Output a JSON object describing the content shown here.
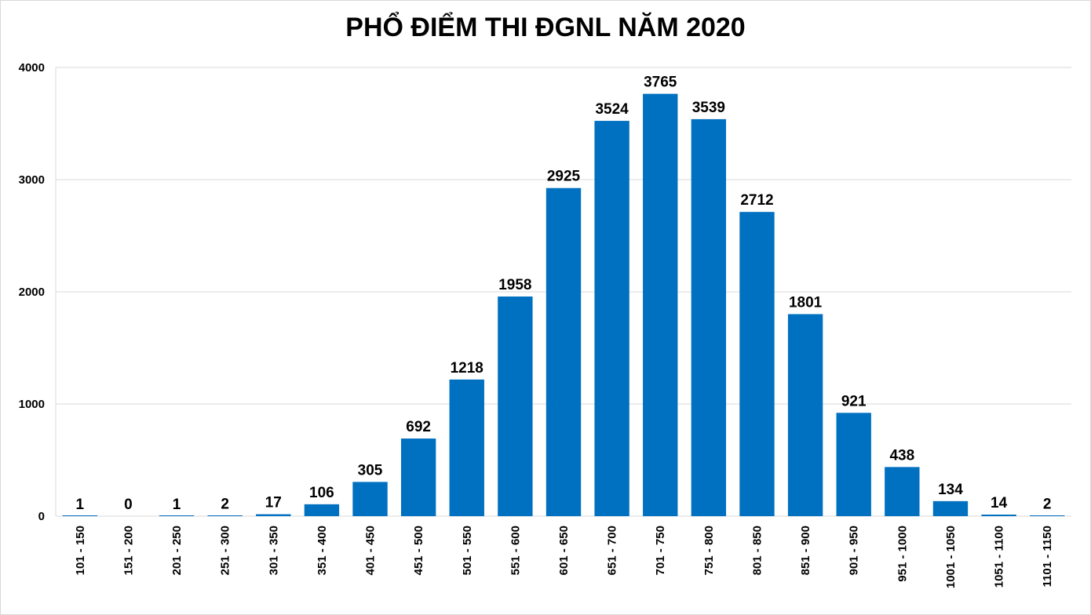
{
  "chart_data": {
    "type": "bar",
    "title": "PHỔ ĐIỂM THI ĐGNL NĂM 2020",
    "xlabel": "",
    "ylabel": "",
    "ylim": [
      0,
      4000
    ],
    "yticks": [
      0,
      1000,
      2000,
      3000,
      4000
    ],
    "grid": true,
    "legend": "none",
    "bar_color": "#0070C0",
    "categories": [
      "101 - 150",
      "151 - 200",
      "201 - 250",
      "251 - 300",
      "301 - 350",
      "351 - 400",
      "401 - 450",
      "451 - 500",
      "501 - 550",
      "551 - 600",
      "601 - 650",
      "651 - 700",
      "701 - 750",
      "751 - 800",
      "801 - 850",
      "851 - 900",
      "901 - 950",
      "951 - 1000",
      "1001 - 1050",
      "1051 - 1100",
      "1101 - 1150"
    ],
    "values": [
      1,
      0,
      1,
      2,
      17,
      106,
      305,
      692,
      1218,
      1958,
      2925,
      3524,
      3765,
      3539,
      2712,
      1801,
      921,
      438,
      134,
      14,
      2
    ]
  }
}
